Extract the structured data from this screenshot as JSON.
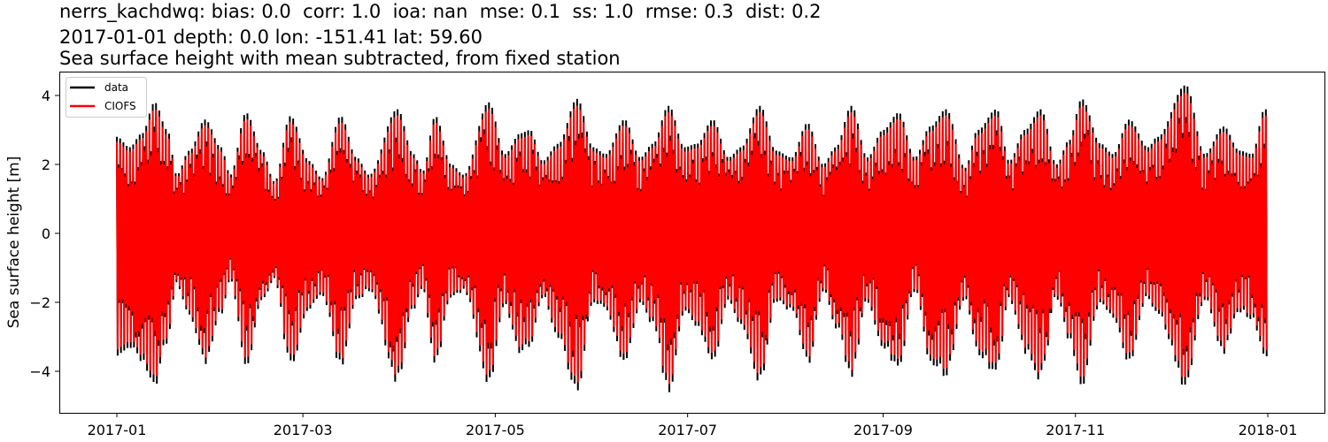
{
  "titles": {
    "line1": "nerrs_kachdwq: bias: 0.0  corr: 1.0  ioa: nan  mse: 0.1  ss: 1.0  rmse: 0.3  dist: 0.2",
    "line2": "2017-01-01 depth: 0.0 lon: -151.41 lat: 59.60",
    "line3": "Sea surface height with mean subtracted, from fixed station"
  },
  "colors": {
    "data": "#000000",
    "model": "#ff0000",
    "axes": "#000000",
    "legend_border": "#cccccc"
  },
  "chart_data": {
    "type": "line",
    "title": "nerrs_kachdwq: bias: 0.0  corr: 1.0  ioa: nan  mse: 0.1  ss: 1.0  rmse: 0.3  dist: 0.2 / 2017-01-01 depth: 0.0 lon: -151.41 lat: 59.60 / Sea surface height with mean subtracted, from fixed station",
    "xlabel": "",
    "ylabel": "Sea surface height [m]",
    "xlim": [
      "2016-12-14",
      "2018-01-18"
    ],
    "ylim": [
      -5.3,
      4.7
    ],
    "grid": false,
    "legend_position": "upper left",
    "x_ticks": [
      "2017-01",
      "2017-03",
      "2017-05",
      "2017-07",
      "2017-09",
      "2017-11",
      "2018-01"
    ],
    "x_tick_days": [
      0,
      59,
      120,
      181,
      243,
      304,
      365
    ],
    "y_ticks": [
      4,
      2,
      0,
      -2,
      -4
    ],
    "y_tick_labels": [
      "4",
      "2",
      "0",
      "−2",
      "−4"
    ],
    "legend": [
      "data",
      "CIOFS"
    ],
    "x_start": "2017-01-01",
    "x_end": "2018-01-01",
    "note": "Semi-diurnal tidal signal; envelope gives approximate daily high/low extremes by day-of-year",
    "series": [
      {
        "name": "data",
        "color": "#000000",
        "envelope": [
          [
            0,
            2.8,
            -3.7
          ],
          [
            4,
            2.5,
            -3.4
          ],
          [
            8,
            2.9,
            -3.9
          ],
          [
            12,
            3.8,
            -4.6
          ],
          [
            16,
            3.0,
            -3.2
          ],
          [
            19,
            1.7,
            -1.5
          ],
          [
            23,
            2.4,
            -2.5
          ],
          [
            28,
            3.3,
            -3.9
          ],
          [
            33,
            2.5,
            -2.4
          ],
          [
            36,
            1.7,
            -1.4
          ],
          [
            41,
            3.5,
            -4.0
          ],
          [
            46,
            2.4,
            -2.0
          ],
          [
            50,
            1.5,
            -1.4
          ],
          [
            55,
            3.4,
            -3.9
          ],
          [
            61,
            2.1,
            -2.3
          ],
          [
            65,
            1.6,
            -1.8
          ],
          [
            71,
            3.4,
            -3.9
          ],
          [
            76,
            2.2,
            -2.0
          ],
          [
            80,
            1.7,
            -1.7
          ],
          [
            89,
            3.6,
            -4.4
          ],
          [
            94,
            2.3,
            -2.3
          ],
          [
            97,
            1.8,
            -1.7
          ],
          [
            101,
            3.4,
            -3.9
          ],
          [
            106,
            2.0,
            -1.9
          ],
          [
            110,
            1.7,
            -1.7
          ],
          [
            118,
            3.8,
            -4.5
          ],
          [
            123,
            2.3,
            -2.2
          ],
          [
            128,
            2.9,
            -3.5
          ],
          [
            131,
            3.0,
            -3.3
          ],
          [
            135,
            2.1,
            -1.9
          ],
          [
            140,
            2.6,
            -3.2
          ],
          [
            146,
            3.9,
            -4.7
          ],
          [
            151,
            2.5,
            -2.0
          ],
          [
            155,
            2.3,
            -2.3
          ],
          [
            161,
            3.3,
            -3.9
          ],
          [
            166,
            2.2,
            -2.1
          ],
          [
            170,
            2.6,
            -2.7
          ],
          [
            175,
            3.7,
            -4.7
          ],
          [
            180,
            2.5,
            -2.3
          ],
          [
            184,
            2.6,
            -2.7
          ],
          [
            189,
            3.3,
            -3.9
          ],
          [
            194,
            2.2,
            -2.0
          ],
          [
            198,
            2.5,
            -2.8
          ],
          [
            204,
            3.7,
            -4.4
          ],
          [
            209,
            2.4,
            -2.0
          ],
          [
            214,
            2.2,
            -2.3
          ],
          [
            219,
            3.2,
            -3.9
          ],
          [
            224,
            2.0,
            -1.7
          ],
          [
            228,
            2.5,
            -2.8
          ],
          [
            233,
            3.7,
            -4.2
          ],
          [
            238,
            2.2,
            -2.0
          ],
          [
            243,
            3.0,
            -3.4
          ],
          [
            248,
            3.5,
            -4.0
          ],
          [
            253,
            2.2,
            -1.7
          ],
          [
            258,
            3.1,
            -3.8
          ],
          [
            263,
            3.6,
            -4.2
          ],
          [
            269,
            1.9,
            -1.9
          ],
          [
            273,
            3.0,
            -3.6
          ],
          [
            279,
            3.6,
            -4.1
          ],
          [
            283,
            2.1,
            -2.0
          ],
          [
            288,
            3.0,
            -3.5
          ],
          [
            293,
            3.6,
            -4.3
          ],
          [
            298,
            2.0,
            -1.9
          ],
          [
            302,
            2.7,
            -3.2
          ],
          [
            306,
            3.9,
            -4.5
          ],
          [
            312,
            2.6,
            -2.0
          ],
          [
            316,
            2.3,
            -2.6
          ],
          [
            321,
            3.3,
            -3.8
          ],
          [
            327,
            2.5,
            -1.9
          ],
          [
            330,
            2.8,
            -2.4
          ],
          [
            339,
            4.3,
            -4.5
          ],
          [
            345,
            2.3,
            -2.0
          ],
          [
            351,
            3.1,
            -3.5
          ],
          [
            356,
            2.4,
            -2.3
          ],
          [
            360,
            2.3,
            -2.5
          ],
          [
            364,
            3.6,
            -3.6
          ]
        ]
      },
      {
        "name": "CIOFS",
        "color": "#ff0000",
        "amplitude_scale": 0.95,
        "envelope_ref": "data"
      }
    ]
  }
}
